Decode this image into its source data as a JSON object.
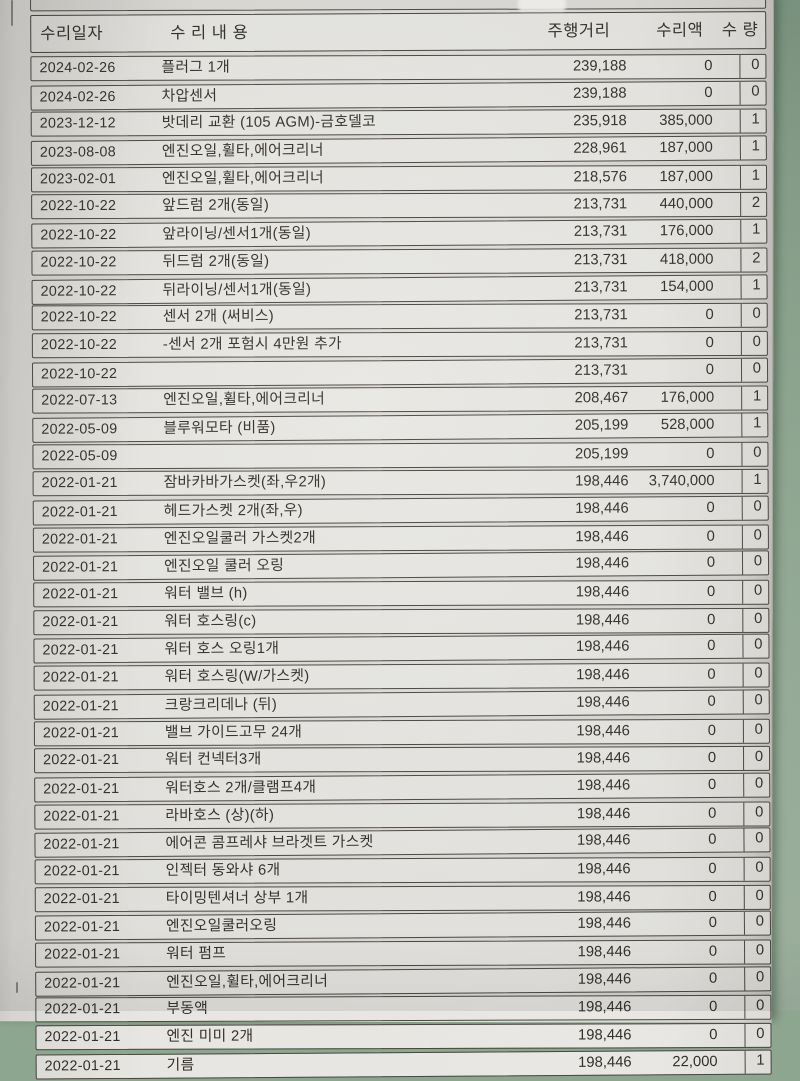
{
  "photo": {
    "background_color": "#8da690",
    "paper_color": "#dcdbd7",
    "border_color": "#4b4740",
    "text_color": "#343029"
  },
  "table": {
    "headers": {
      "date": "수리일자",
      "content": "수 리 내 용",
      "mileage": "주행거리",
      "cost": "수리액",
      "qty": "수 량"
    },
    "rows": [
      [
        "2024-02-26",
        "플러그 1개",
        "239,188",
        "0",
        "0"
      ],
      [
        "2024-02-26",
        "차압센서",
        "239,188",
        "0",
        "0"
      ],
      [
        "2023-12-12",
        "밧데리 교환 (105 AGM)-금호델코",
        "235,918",
        "385,000",
        "1"
      ],
      [
        "2023-08-08",
        "엔진오일,휠타,에어크리너",
        "228,961",
        "187,000",
        "1"
      ],
      [
        "2023-02-01",
        "엔진오일,휠타,에어크리너",
        "218,576",
        "187,000",
        "1"
      ],
      [
        "2022-10-22",
        "앞드럼 2개(동일)",
        "213,731",
        "440,000",
        "2"
      ],
      [
        "2022-10-22",
        "앞라이닝/센서1개(동일)",
        "213,731",
        "176,000",
        "1"
      ],
      [
        "2022-10-22",
        "뒤드럼 2개(동일)",
        "213,731",
        "418,000",
        "2"
      ],
      [
        "2022-10-22",
        "뒤라이닝/센서1개(동일)",
        "213,731",
        "154,000",
        "1"
      ],
      [
        "2022-10-22",
        "센서 2개 (써비스)",
        "213,731",
        "0",
        "0"
      ],
      [
        "2022-10-22",
        "-센서 2개 포험시 4만원 추가",
        "213,731",
        "0",
        "0"
      ],
      [
        "2022-10-22",
        "",
        "213,731",
        "0",
        "0"
      ],
      [
        "2022-07-13",
        "엔진오일,휠타,에어크리너",
        "208,467",
        "176,000",
        "1"
      ],
      [
        "2022-05-09",
        "블루워모타 (비품)",
        "205,199",
        "528,000",
        "1"
      ],
      [
        "2022-05-09",
        "",
        "205,199",
        "0",
        "0"
      ],
      [
        "2022-01-21",
        "잠바카바가스켓(좌,우2개)",
        "198,446",
        "3,740,000",
        "1"
      ],
      [
        "2022-01-21",
        "헤드가스켓 2개(좌,우)",
        "198,446",
        "0",
        "0"
      ],
      [
        "2022-01-21",
        "엔진오일쿨러 가스켓2개",
        "198,446",
        "0",
        "0"
      ],
      [
        "2022-01-21",
        "엔진오일 쿨러 오링",
        "198,446",
        "0",
        "0"
      ],
      [
        "2022-01-21",
        "워터 밸브 (h)",
        "198,446",
        "0",
        "0"
      ],
      [
        "2022-01-21",
        "워터 호스링(c)",
        "198,446",
        "0",
        "0"
      ],
      [
        "2022-01-21",
        "워터 호스 오링1개",
        "198,446",
        "0",
        "0"
      ],
      [
        "2022-01-21",
        "워터 호스링(W/가스켓)",
        "198,446",
        "0",
        "0"
      ],
      [
        "2022-01-21",
        "크랑크리데나 (뒤)",
        "198,446",
        "0",
        "0"
      ],
      [
        "2022-01-21",
        "밸브 가이드고무 24개",
        "198,446",
        "0",
        "0"
      ],
      [
        "2022-01-21",
        "워터 컨넥터3개",
        "198,446",
        "0",
        "0"
      ],
      [
        "2022-01-21",
        "워터호스 2개/클램프4개",
        "198,446",
        "0",
        "0"
      ],
      [
        "2022-01-21",
        "라바호스 (상)(하)",
        "198,446",
        "0",
        "0"
      ],
      [
        "2022-01-21",
        "에어콘 콤프레샤 브라겟트 가스켓",
        "198,446",
        "0",
        "0"
      ],
      [
        "2022-01-21",
        "인젝터 동와샤 6개",
        "198,446",
        "0",
        "0"
      ],
      [
        "2022-01-21",
        "타이밍텐셔너 상부 1개",
        "198,446",
        "0",
        "0"
      ],
      [
        "2022-01-21",
        "엔진오일쿨러오링",
        "198,446",
        "0",
        "0"
      ],
      [
        "2022-01-21",
        "워터 펌프",
        "198,446",
        "0",
        "0"
      ],
      [
        "2022-01-21",
        "엔진오일,휠타,에어크리너",
        "198,446",
        "0",
        "0"
      ],
      [
        "2022-01-21",
        "부동액",
        "198,446",
        "0",
        "0"
      ],
      [
        "2022-01-21",
        "엔진 미미 2개",
        "198,446",
        "0",
        "0"
      ],
      [
        "2022-01-21",
        "기름",
        "198,446",
        "22,000",
        "1"
      ]
    ]
  }
}
